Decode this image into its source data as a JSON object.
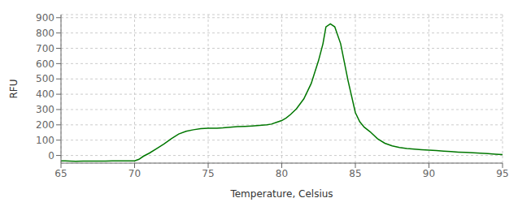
{
  "chart_data": {
    "type": "line",
    "xlabel": "Temperature, Celsius",
    "ylabel": "RFU",
    "x": [
      65.0,
      65.3,
      65.6,
      66.0,
      66.5,
      67.0,
      67.5,
      68.0,
      68.5,
      69.0,
      69.5,
      70.0,
      70.3,
      70.6,
      71.0,
      71.5,
      72.0,
      72.5,
      73.0,
      73.5,
      74.0,
      74.5,
      75.0,
      75.3,
      75.6,
      76.0,
      76.5,
      77.0,
      77.5,
      78.0,
      78.5,
      79.0,
      79.3,
      79.6,
      80.0,
      80.3,
      80.6,
      81.0,
      81.5,
      82.0,
      82.5,
      82.8,
      83.0,
      83.3,
      83.6,
      84.0,
      84.5,
      85.0,
      85.3,
      85.6,
      86.0,
      86.5,
      87.0,
      87.5,
      88.0,
      88.5,
      89.0,
      89.5,
      90.0,
      90.5,
      91.0,
      91.5,
      92.0,
      92.5,
      93.0,
      93.5,
      94.0,
      94.5,
      95.0
    ],
    "values": [
      -35,
      -36,
      -37,
      -38,
      -37,
      -37,
      -37,
      -37,
      -36,
      -36,
      -36,
      -35,
      -25,
      -5,
      15,
      45,
      75,
      110,
      140,
      158,
      168,
      175,
      178,
      178,
      178,
      180,
      185,
      188,
      190,
      193,
      196,
      200,
      205,
      215,
      228,
      245,
      268,
      305,
      370,
      470,
      620,
      730,
      840,
      860,
      840,
      730,
      490,
      280,
      220,
      185,
      155,
      110,
      80,
      63,
      52,
      46,
      42,
      38,
      35,
      32,
      28,
      25,
      22,
      20,
      17,
      15,
      12,
      8,
      5
    ],
    "color": "#007700",
    "xlim": [
      65,
      95
    ],
    "xticks": [
      65,
      70,
      75,
      80,
      85,
      90,
      95
    ],
    "ylim": [
      -50,
      920
    ],
    "yticks": [
      0,
      100,
      200,
      300,
      400,
      500,
      600,
      700,
      800,
      900
    ],
    "grid": true
  }
}
